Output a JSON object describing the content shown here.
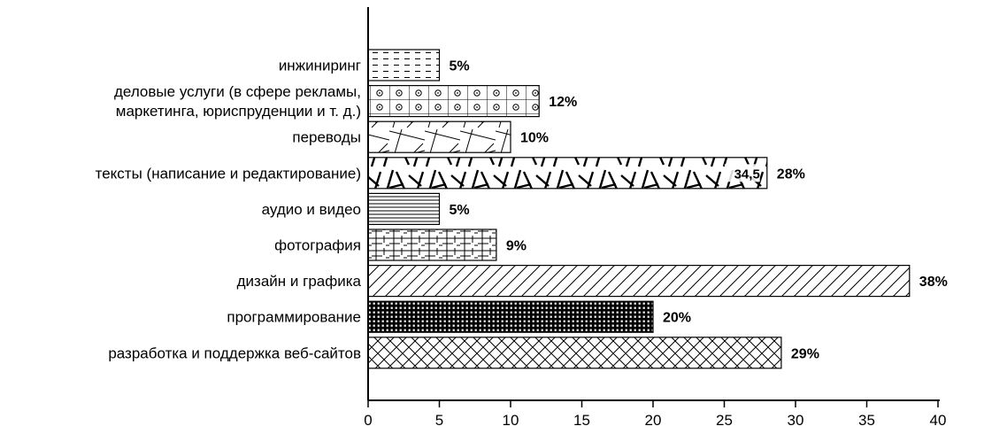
{
  "chart_data": {
    "type": "bar",
    "orientation": "horizontal",
    "categories": [
      "инжиниринг",
      "деловые услуги (в сфере рекламы, маркетинга, юриспруденции и т. д.)",
      "переводы",
      "тексты (написание и редактирование)",
      "аудио и видео",
      "фотография",
      "дизайн и графика",
      "программирование",
      "разработка и поддержка веб-сайтов"
    ],
    "category_lines": [
      [
        "инжиниринг"
      ],
      [
        "деловые услуги (в сфере рекламы,",
        "маркетинга, юриспруденции и т. д.)"
      ],
      [
        "переводы"
      ],
      [
        "тексты (написание и редактирование)"
      ],
      [
        "аудио и видео"
      ],
      [
        "фотография"
      ],
      [
        "дизайн и графика"
      ],
      [
        "программирование"
      ],
      [
        "разработка и поддержка веб-сайтов"
      ]
    ],
    "values": [
      5,
      12,
      10,
      28,
      5,
      9,
      38,
      20,
      29
    ],
    "value_labels": [
      "5%",
      "12%",
      "10%",
      "28%",
      "5%",
      "9%",
      "38%",
      "20%",
      "29%"
    ],
    "patterns": [
      "dashes",
      "circles-grid",
      "mixed-lines",
      "scribble",
      "horizontal-lines",
      "crosshatch-mixed",
      "diagonal",
      "dense-grid",
      "cross-diagonal"
    ],
    "annotations": [
      {
        "category_index": 3,
        "text": "34,5"
      }
    ],
    "x_ticks": [
      0,
      5,
      10,
      15,
      20,
      25,
      30,
      35,
      40
    ],
    "xlim": [
      0,
      40
    ],
    "title": "",
    "xlabel": "",
    "ylabel": "",
    "grid": false
  }
}
